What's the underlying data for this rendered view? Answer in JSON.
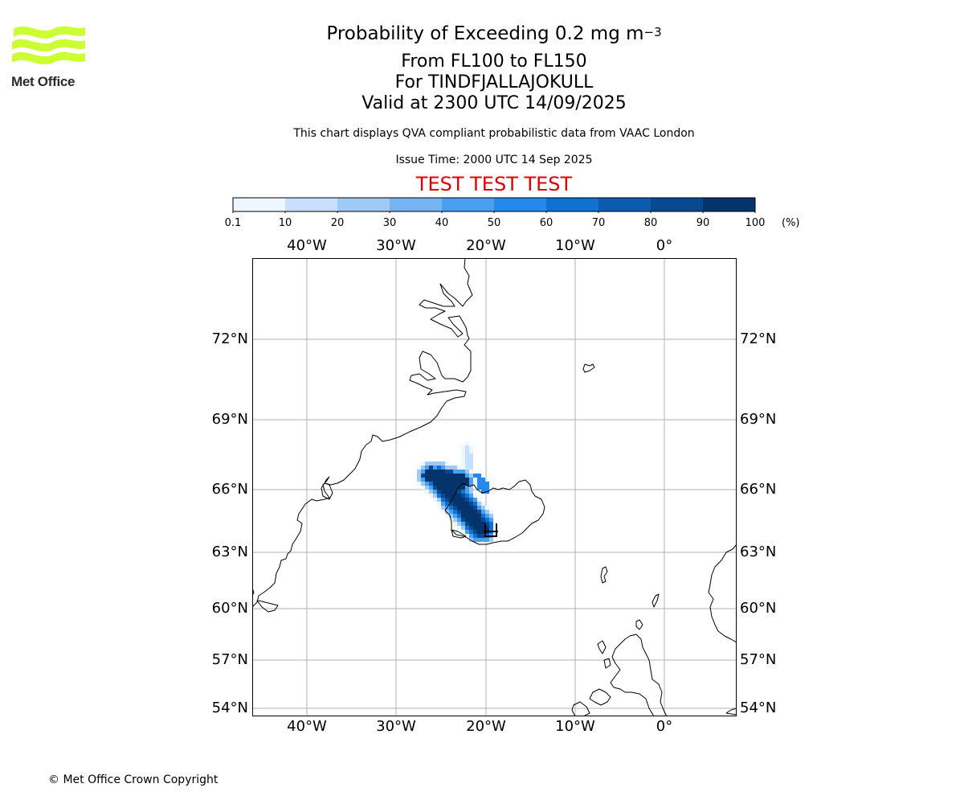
{
  "logo": {
    "text": "Met Office",
    "color": "#ccff33"
  },
  "title": {
    "main": "Probability of Exceeding 0.2 mg m",
    "main_superscript": "−3",
    "level_range": "From FL100 to FL150",
    "volcano": "For TINDFJALLAJOKULL",
    "valid_time": "Valid at 2300 UTC 14/09/2025"
  },
  "description": "This chart displays QVA compliant probabilistic data from VAAC London",
  "issue_time": "Issue Time: 2000 UTC 14 Sep 2025",
  "test_banner": {
    "text": "TEST TEST TEST",
    "color": "#e00000"
  },
  "colorbar": {
    "ticks": [
      "0.1",
      "10",
      "20",
      "30",
      "40",
      "50",
      "60",
      "70",
      "80",
      "90",
      "100"
    ],
    "unit": "(%)",
    "colors": [
      "#eef6ff",
      "#c8e0fb",
      "#9fcaf6",
      "#74b4f2",
      "#4aa0f0",
      "#2389ec",
      "#0f71d2",
      "#0b5bb0",
      "#084a92",
      "#05346c"
    ]
  },
  "map": {
    "lon_labels": [
      "40°W",
      "30°W",
      "20°W",
      "10°W",
      "0°"
    ],
    "lat_labels": [
      "72°N",
      "69°N",
      "66°N",
      "63°N",
      "60°N",
      "57°N",
      "54°N"
    ],
    "grid_color": "#b0b0b0",
    "coast_color": "#000000"
  },
  "copyright": "© Met Office Crown Copyright"
}
